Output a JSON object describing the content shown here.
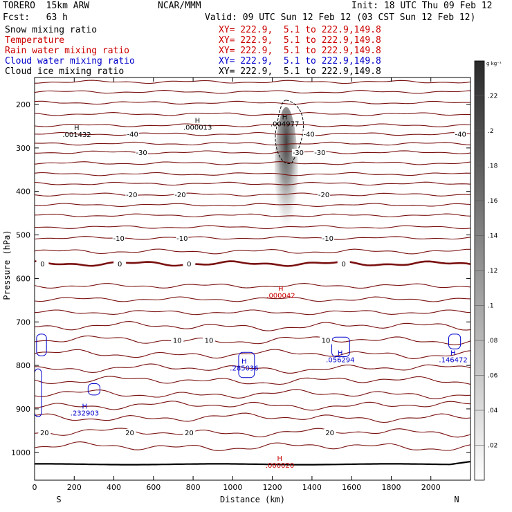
{
  "header": {
    "model": "TORERO  15km ARW",
    "center": "NCAR/MMM",
    "init": "Init: 18 UTC Thu 09 Feb 12",
    "fcst": "Fcst:   63 h",
    "valid": "Valid: 09 UTC Sun 12 Feb 12 (03 CST Sun 12 Feb 12)",
    "fields": [
      {
        "name": "Snow mixing ratio",
        "xy": "XY= 222.9,  5.1 to 222.9,149.8",
        "color": "#000000"
      },
      {
        "name": "Temperature",
        "xy": "XY= 222.9,  5.1 to 222.9,149.8",
        "color": "#cc0000"
      },
      {
        "name": "Rain water mixing ratio",
        "xy": "XY= 222.9,  5.1 to 222.9,149.8",
        "color": "#cc0000"
      },
      {
        "name": "Cloud water mixing ratio",
        "xy": "XY= 222.9,  5.1 to 222.9,149.8",
        "color": "#0000cc"
      },
      {
        "name": "Cloud ice mixing ratio",
        "xy": "XY= 222.9,  5.1 to 222.9,149.8",
        "color": "#000000"
      }
    ]
  },
  "chart_data": {
    "type": "cross-section contour",
    "xlabel": "Distance (km)",
    "ylabel": "Pressure (hPa)",
    "xlim": [
      0,
      2200
    ],
    "ylim": [
      1050,
      100
    ],
    "x_ticks": [
      0,
      200,
      400,
      600,
      800,
      1000,
      1200,
      1400,
      1600,
      1800,
      2000
    ],
    "y_ticks": [
      200,
      300,
      400,
      500,
      600,
      700,
      800,
      900,
      1000
    ],
    "end_labels": {
      "left": "S",
      "right": "N"
    },
    "colorbar": {
      "unit": "g kg⁻¹",
      "min": 0.0,
      "max": 0.24,
      "ticks": [
        ".02",
        ".04",
        ".06",
        ".08",
        ".1",
        ".12",
        ".14",
        ".16",
        ".18",
        ".2",
        ".22"
      ]
    },
    "snow_plume": {
      "center_km": 1270,
      "top_hPa": 190,
      "bottom_hPa": 510,
      "max": 0.23
    },
    "temperature_contours": [
      {
        "p": 100
      },
      {
        "p": 110
      },
      {
        "p": 127
      },
      {
        "p": 148
      },
      {
        "p": 171
      },
      {
        "p": 196
      },
      {
        "p": 222
      },
      {
        "p": 248
      },
      {
        "p": 268,
        "label": "-40",
        "label_x": [
          495,
          1385,
          2150
        ]
      },
      {
        "p": 290
      },
      {
        "p": 310,
        "label": "-30",
        "label_x": [
          540,
          1330,
          1440
        ]
      },
      {
        "p": 335
      },
      {
        "p": 360
      },
      {
        "p": 382
      },
      {
        "p": 407,
        "label": "-20",
        "label_x": [
          490,
          735,
          1460
        ]
      },
      {
        "p": 431
      },
      {
        "p": 455
      },
      {
        "p": 482
      },
      {
        "p": 507,
        "label": "-10",
        "label_x": [
          425,
          745,
          1480
        ]
      },
      {
        "p": 538
      },
      {
        "p": 566,
        "label": "0",
        "label_x": [
          40,
          430,
          780,
          1560
        ],
        "bold": true
      },
      {
        "p": 617
      },
      {
        "p": 648
      },
      {
        "p": 678
      },
      {
        "p": 710
      },
      {
        "p": 742,
        "label": "10",
        "label_x": [
          720,
          880,
          1470
        ]
      },
      {
        "p": 774
      },
      {
        "p": 807
      },
      {
        "p": 835
      },
      {
        "p": 866
      },
      {
        "p": 892
      },
      {
        "p": 920
      },
      {
        "p": 954,
        "label": "20",
        "label_x": [
          50,
          480,
          780,
          1490
        ]
      },
      {
        "p": 987
      }
    ],
    "highs": [
      {
        "x_km": 220,
        "p": 275,
        "value": ".001432",
        "color": "#000000"
      },
      {
        "x_km": 830,
        "p": 258,
        "value": ".000013",
        "color": "#000000"
      },
      {
        "x_km": 1270,
        "p": 250,
        "value": ".004977",
        "color": "#000000"
      },
      {
        "x_km": 1250,
        "p": 645,
        "value": ".000042",
        "color": "#cc0000"
      },
      {
        "x_km": 1065,
        "p": 812,
        "value": ".285036",
        "color": "#0000cc"
      },
      {
        "x_km": 1550,
        "p": 793,
        "value": ".056294",
        "color": "#0000cc"
      },
      {
        "x_km": 2120,
        "p": 793,
        "value": ".146472",
        "color": "#0000cc"
      },
      {
        "x_km": 260,
        "p": 915,
        "value": ".232903",
        "color": "#0000cc"
      },
      {
        "x_km": 1245,
        "p": 1035,
        "value": ".000020",
        "color": "#cc0000"
      }
    ],
    "snow_contour": {
      "center_km": 1270,
      "top_hPa": 190,
      "bottom_hPa": 335
    },
    "cloud_water_contours": [
      {
        "x0_km": 10,
        "x1_km": 60,
        "p_top": 728,
        "p_bot": 778
      },
      {
        "x0_km": 0,
        "x1_km": 35,
        "p_top": 808,
        "p_bot": 918
      },
      {
        "x0_km": 270,
        "x1_km": 330,
        "p_top": 842,
        "p_bot": 868
      },
      {
        "x0_km": 1030,
        "x1_km": 1110,
        "p_top": 770,
        "p_bot": 828
      },
      {
        "x0_km": 1500,
        "x1_km": 1590,
        "p_top": 735,
        "p_bot": 780
      },
      {
        "x0_km": 2090,
        "x1_km": 2150,
        "p_top": 728,
        "p_bot": 762
      }
    ]
  }
}
